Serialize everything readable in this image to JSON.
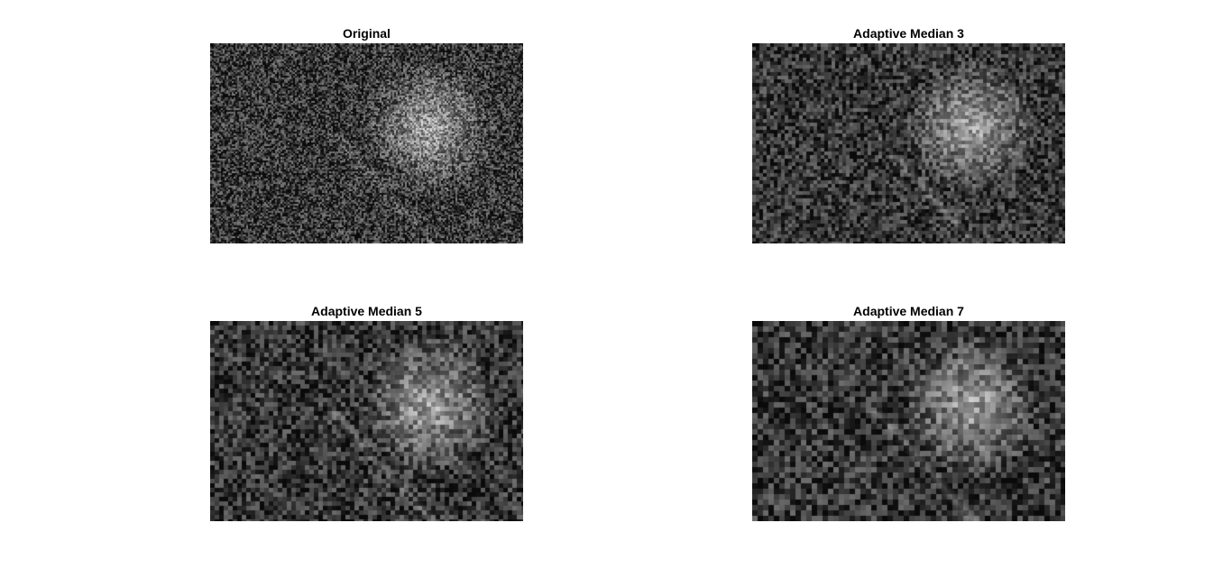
{
  "figure": {
    "panels": [
      {
        "title": "Original"
      },
      {
        "title": "Adaptive Median 3"
      },
      {
        "title": "Adaptive Median 5"
      },
      {
        "title": "Adaptive Median 7"
      }
    ]
  }
}
